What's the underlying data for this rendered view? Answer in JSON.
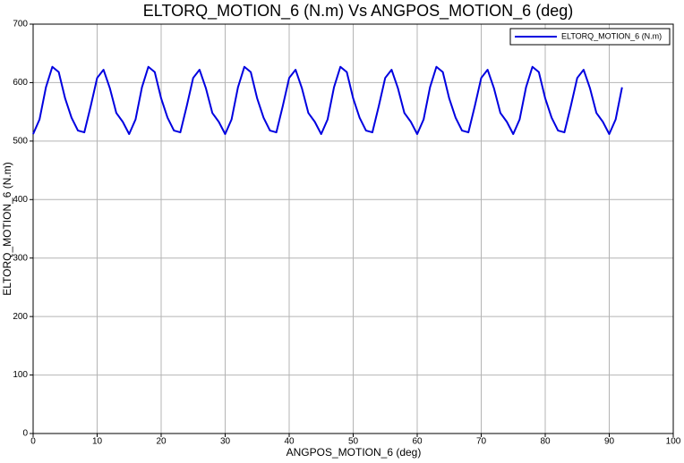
{
  "chart_data": {
    "type": "line",
    "title": "ELTORQ_MOTION_6  (N.m) Vs ANGPOS_MOTION_6 (deg)",
    "x_label": "ANGPOS_MOTION_6 (deg)",
    "y_label": "ELTORQ_MOTION_6 (N.m)",
    "x": [
      0,
      1,
      2,
      3,
      4,
      5,
      6,
      7,
      8,
      9,
      10,
      11,
      12,
      13,
      14,
      15,
      16,
      17,
      18,
      19,
      20,
      21,
      22,
      23,
      24,
      25,
      26,
      27,
      28,
      29,
      30,
      31,
      32,
      33,
      34,
      35,
      36,
      37,
      38,
      39,
      40,
      41,
      42,
      43,
      44,
      45,
      46,
      47,
      48,
      49,
      50,
      51,
      52,
      53,
      54,
      55,
      56,
      57,
      58,
      59,
      60,
      61,
      62,
      63,
      64,
      65,
      66,
      67,
      68,
      69,
      70,
      71,
      72,
      73,
      74,
      75,
      76,
      77,
      78,
      79,
      80,
      81,
      82,
      83,
      84,
      85,
      86,
      87,
      88,
      89,
      90,
      91,
      92
    ],
    "series": [
      {
        "name": "ELTORQ_MOTION_6 (N.m)",
        "color": "#0000e0",
        "values": [
          512,
          537,
          592,
          627,
          618,
          573,
          540,
          518,
          515,
          560,
          608,
          622,
          590,
          548,
          533,
          512,
          537,
          592,
          627,
          618,
          573,
          540,
          518,
          515,
          560,
          608,
          622,
          590,
          548,
          533,
          512,
          537,
          592,
          627,
          618,
          573,
          540,
          518,
          515,
          560,
          608,
          622,
          590,
          548,
          533,
          512,
          537,
          592,
          627,
          618,
          573,
          540,
          518,
          515,
          560,
          608,
          622,
          590,
          548,
          533,
          512,
          537,
          592,
          627,
          618,
          573,
          540,
          518,
          515,
          560,
          608,
          622,
          590,
          548,
          533,
          512,
          537,
          592,
          627,
          618,
          573,
          540,
          518,
          515,
          560,
          608,
          622,
          590,
          548,
          533,
          512,
          537,
          592
        ]
      }
    ],
    "xlim": [
      0,
      100
    ],
    "xticks": [
      0,
      10,
      20,
      30,
      40,
      50,
      60,
      70,
      80,
      90,
      100
    ],
    "ylim": [
      0,
      700
    ],
    "yticks": [
      0,
      100,
      200,
      300,
      400,
      500,
      600,
      700
    ],
    "grid": true,
    "legend": "upper-right"
  }
}
